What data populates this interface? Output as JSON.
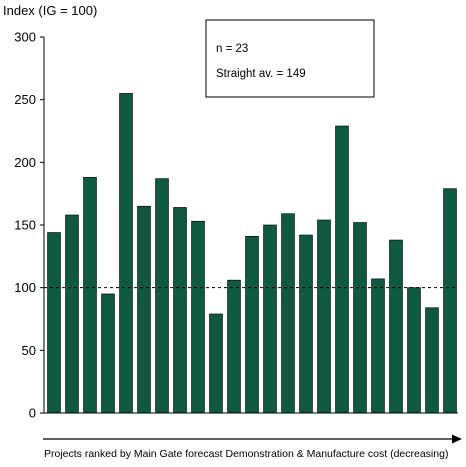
{
  "chart_data": {
    "type": "bar",
    "title": "",
    "ylabel": "Index (IG = 100)",
    "xlabel": "Projects ranked by Main Gate forecast Demonstration & Manufacture cost (decreasing)",
    "ylim": [
      0,
      300
    ],
    "yticks": [
      0,
      50,
      100,
      150,
      200,
      250,
      300
    ],
    "grid": false,
    "reference_line": {
      "value": 100,
      "style": "dashed"
    },
    "annotation": {
      "n_label": "n = 23",
      "average_label": "Straight av. = 149"
    },
    "values": [
      144,
      158,
      188,
      95,
      255,
      165,
      187,
      164,
      153,
      79,
      106,
      141,
      150,
      159,
      142,
      154,
      229,
      152,
      107,
      138,
      100,
      84,
      179
    ]
  },
  "colors": {
    "bar_fill": "#0d5a40",
    "bar_stroke": "#000000",
    "axis": "#000000"
  }
}
